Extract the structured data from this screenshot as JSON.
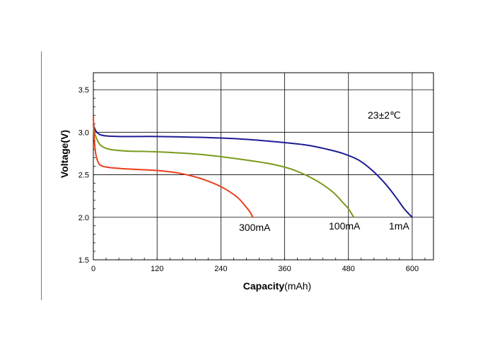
{
  "chart_data": {
    "type": "line",
    "xlabel": "Capacity",
    "xlabel_unit": "(mAh)",
    "ylabel": "Voltage(V)",
    "xlim": [
      0,
      640
    ],
    "ylim": [
      1.5,
      3.7
    ],
    "xticks": [
      0,
      120,
      240,
      360,
      480,
      600
    ],
    "yticks": [
      1.5,
      2.0,
      2.5,
      3.0,
      3.5
    ],
    "ytick_labels": [
      "1.5",
      "2.0",
      "2.5",
      "3.0",
      "3.5"
    ],
    "grid": true,
    "annotation": "23±2℃",
    "series": [
      {
        "name": "1mA",
        "color": "#1c1c96",
        "points": [
          [
            0,
            3.1
          ],
          [
            2,
            3.05
          ],
          [
            8,
            2.99
          ],
          [
            20,
            2.96
          ],
          [
            50,
            2.95
          ],
          [
            120,
            2.95
          ],
          [
            200,
            2.94
          ],
          [
            280,
            2.92
          ],
          [
            340,
            2.89
          ],
          [
            400,
            2.85
          ],
          [
            440,
            2.8
          ],
          [
            470,
            2.75
          ],
          [
            500,
            2.67
          ],
          [
            525,
            2.55
          ],
          [
            550,
            2.39
          ],
          [
            570,
            2.23
          ],
          [
            585,
            2.1
          ],
          [
            600,
            2.0
          ]
        ]
      },
      {
        "name": "100mA",
        "color": "#7a9a1e",
        "points": [
          [
            0,
            3.08
          ],
          [
            3,
            2.98
          ],
          [
            8,
            2.9
          ],
          [
            15,
            2.84
          ],
          [
            30,
            2.8
          ],
          [
            60,
            2.78
          ],
          [
            120,
            2.77
          ],
          [
            200,
            2.74
          ],
          [
            280,
            2.68
          ],
          [
            340,
            2.62
          ],
          [
            380,
            2.55
          ],
          [
            420,
            2.43
          ],
          [
            450,
            2.3
          ],
          [
            470,
            2.17
          ],
          [
            480,
            2.1
          ],
          [
            490,
            2.0
          ]
        ]
      },
      {
        "name": "300mA",
        "color": "#e8401c",
        "points": [
          [
            0,
            3.2
          ],
          [
            1,
            3.0
          ],
          [
            3,
            2.82
          ],
          [
            6,
            2.7
          ],
          [
            12,
            2.62
          ],
          [
            25,
            2.59
          ],
          [
            60,
            2.57
          ],
          [
            120,
            2.55
          ],
          [
            160,
            2.52
          ],
          [
            200,
            2.46
          ],
          [
            240,
            2.36
          ],
          [
            270,
            2.24
          ],
          [
            285,
            2.14
          ],
          [
            295,
            2.06
          ],
          [
            300,
            2.0
          ]
        ]
      }
    ]
  },
  "curve_labels": {
    "label_300": "300mA",
    "label_100": "100mA",
    "label_1": "1mA"
  },
  "colors": {
    "axis": "#000000",
    "grid": "#000000"
  }
}
